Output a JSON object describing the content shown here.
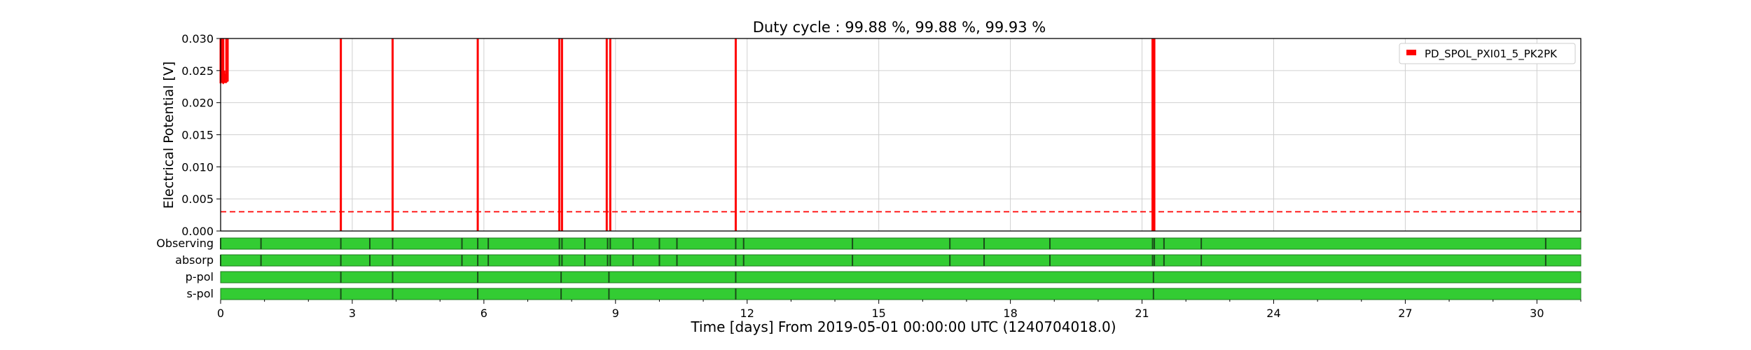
{
  "chart_data": {
    "type": "line",
    "title": "Duty cycle : 99.88 %, 99.88 %, 99.93 %",
    "xlabel": "Time [days] From 2019-05-01 00:00:00 UTC (1240704018.0)",
    "ylabel": "Electrical Potential [V]",
    "xlim": [
      0,
      31
    ],
    "ylim": [
      0,
      0.03
    ],
    "x_ticks": [
      "0",
      "3",
      "6",
      "9",
      "12",
      "15",
      "18",
      "21",
      "24",
      "27",
      "30"
    ],
    "y_ticks": [
      "0.000",
      "0.005",
      "0.010",
      "0.015",
      "0.020",
      "0.025",
      "0.030"
    ],
    "grid": true,
    "legend_position": "top-right",
    "series": [
      {
        "name": "PD_SPOL_PXI01_5_PK2PK",
        "color": "#ff0000",
        "x": [
          0.0,
          0.03,
          0.06,
          0.08,
          0.1,
          0.13,
          0.16,
          2.74,
          3.92,
          5.86,
          7.72,
          7.78,
          8.8,
          8.88,
          11.74,
          21.24,
          21.28
        ],
        "y_low": [
          0.023,
          0.0232,
          0.0234,
          0.0231,
          0.0232,
          0.0235,
          0.0233,
          0.0,
          0.0,
          0.0,
          0.0,
          0.0,
          0.0,
          0.0,
          0.0,
          0.0,
          0.0
        ],
        "y_high": [
          0.03,
          0.03,
          0.03,
          0.025,
          0.0245,
          0.03,
          0.03,
          0.03,
          0.03,
          0.03,
          0.03,
          0.03,
          0.03,
          0.03,
          0.03,
          0.03,
          0.03
        ]
      }
    ],
    "threshold": {
      "y": 0.003,
      "color": "#ff0000",
      "style": "dashed"
    },
    "segment_rows": {
      "color_on": "#33cc33",
      "color_off": "#1a4d1a",
      "rows": [
        {
          "label": "Observing",
          "gaps": [
            0.0,
            0.92,
            2.74,
            3.4,
            3.92,
            5.5,
            5.86,
            6.1,
            7.72,
            7.78,
            8.3,
            8.82,
            8.88,
            9.4,
            10.0,
            10.4,
            11.74,
            11.92,
            14.4,
            16.62,
            17.4,
            18.9,
            21.24,
            21.28,
            21.5,
            22.35,
            30.2
          ]
        },
        {
          "label": "absorp",
          "gaps": [
            0.0,
            0.92,
            2.74,
            3.4,
            3.92,
            5.5,
            5.86,
            6.1,
            7.72,
            7.78,
            8.3,
            8.82,
            8.88,
            9.4,
            10.0,
            10.4,
            11.74,
            11.92,
            14.4,
            16.62,
            17.4,
            18.9,
            21.24,
            21.28,
            21.5,
            22.35,
            30.2
          ]
        },
        {
          "label": "p-pol",
          "gaps": [
            2.74,
            3.92,
            5.86,
            7.76,
            8.85,
            11.74,
            21.26
          ]
        },
        {
          "label": "s-pol",
          "gaps": [
            2.74,
            3.92,
            5.86,
            7.76,
            8.85,
            11.74,
            21.26
          ]
        }
      ]
    }
  }
}
